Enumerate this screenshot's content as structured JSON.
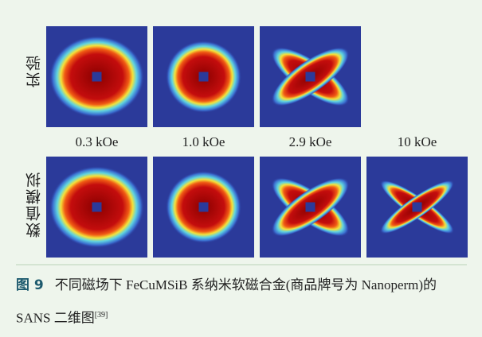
{
  "row_labels": [
    "实验",
    "数值模拟"
  ],
  "field_labels": [
    "0.3 kOe",
    "1.0 kOe",
    "2.9 kOe",
    "10 kOe"
  ],
  "caption": {
    "label": "图 9",
    "text": "不同磁场下 FeCuMSiB 系纳米软磁合金(商品牌号为 Nanoperm)的 SANS 二维图",
    "ref": "[39]"
  }
}
